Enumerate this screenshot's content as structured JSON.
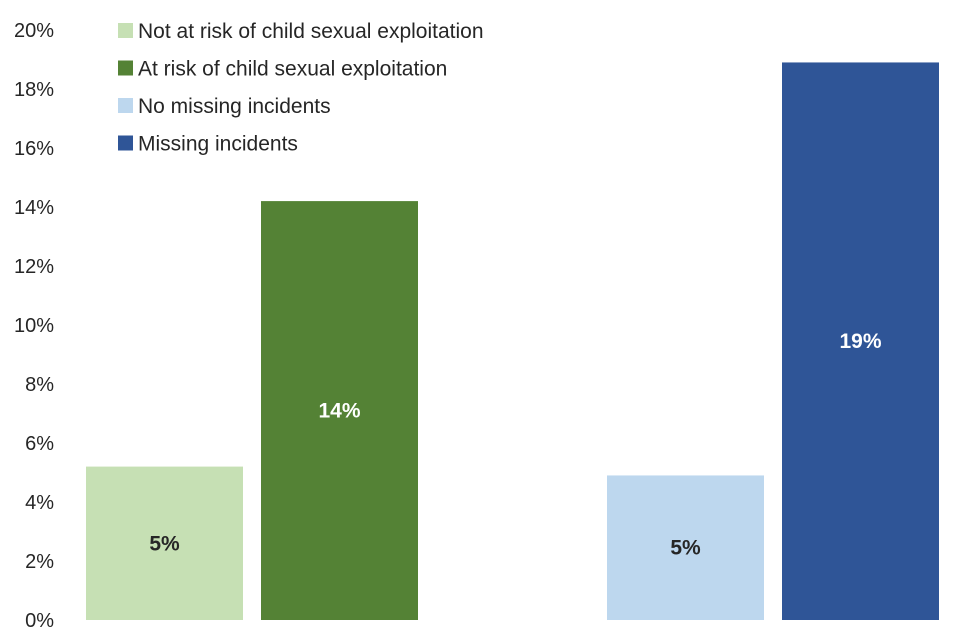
{
  "chart_data": {
    "type": "bar",
    "ylim": [
      0,
      20
    ],
    "yticks": [
      "0%",
      "2%",
      "4%",
      "6%",
      "8%",
      "10%",
      "12%",
      "14%",
      "16%",
      "18%",
      "20%"
    ],
    "grid": false,
    "legend_position": "top-left",
    "title": "",
    "xlabel": "",
    "ylabel": "",
    "bars": [
      {
        "name": "Not at risk of child sexual exploitation",
        "value": 5.2,
        "label": "5%",
        "color": "#c6e0b4",
        "label_color": "#262626",
        "group": 0
      },
      {
        "name": "At risk of child sexual exploitation",
        "value": 14.2,
        "label": "14%",
        "color": "#548235",
        "label_color": "#ffffff",
        "group": 0
      },
      {
        "name": "No missing incidents",
        "value": 4.9,
        "label": "5%",
        "color": "#bdd7ee",
        "label_color": "#262626",
        "group": 1
      },
      {
        "name": "Missing incidents",
        "value": 18.9,
        "label": "19%",
        "color": "#2f5597",
        "label_color": "#ffffff",
        "group": 1
      }
    ]
  }
}
